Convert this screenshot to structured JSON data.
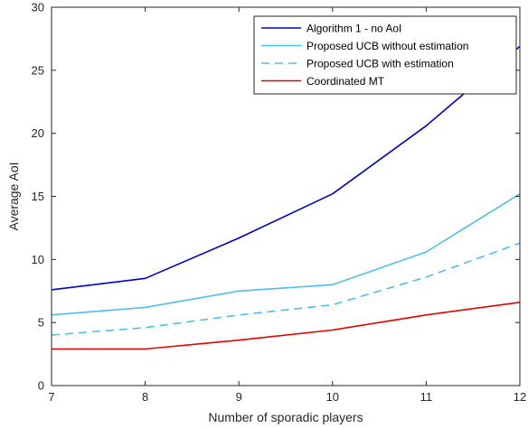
{
  "chart_data": {
    "type": "line",
    "title": "",
    "xlabel": "Number of sporadic players",
    "ylabel": "Average AoI",
    "x": [
      7,
      8,
      9,
      10,
      11,
      12
    ],
    "xlim": [
      7,
      12
    ],
    "ylim": [
      0,
      30
    ],
    "xticks": [
      7,
      8,
      9,
      10,
      11,
      12
    ],
    "yticks": [
      0,
      5,
      10,
      15,
      20,
      25,
      30
    ],
    "grid": false,
    "legend_position": "top-right",
    "series": [
      {
        "name": "Algorithm 1 - no AoI",
        "values": [
          7.6,
          8.5,
          11.7,
          15.2,
          20.6,
          26.9
        ],
        "color": "#0000cd",
        "dash": "solid"
      },
      {
        "name": "Proposed UCB without estimation",
        "values": [
          5.6,
          6.2,
          7.5,
          8.0,
          10.6,
          15.2
        ],
        "color": "#4dbeee",
        "dash": "solid"
      },
      {
        "name": "Proposed UCB with estimation",
        "values": [
          4.0,
          4.6,
          5.6,
          6.4,
          8.6,
          11.3
        ],
        "color": "#4dbeee",
        "dash": "dashed"
      },
      {
        "name": "Coordinated MT",
        "values": [
          2.9,
          2.9,
          3.6,
          4.4,
          5.6,
          6.6
        ],
        "color": "#e60000",
        "dash": "solid"
      }
    ]
  }
}
